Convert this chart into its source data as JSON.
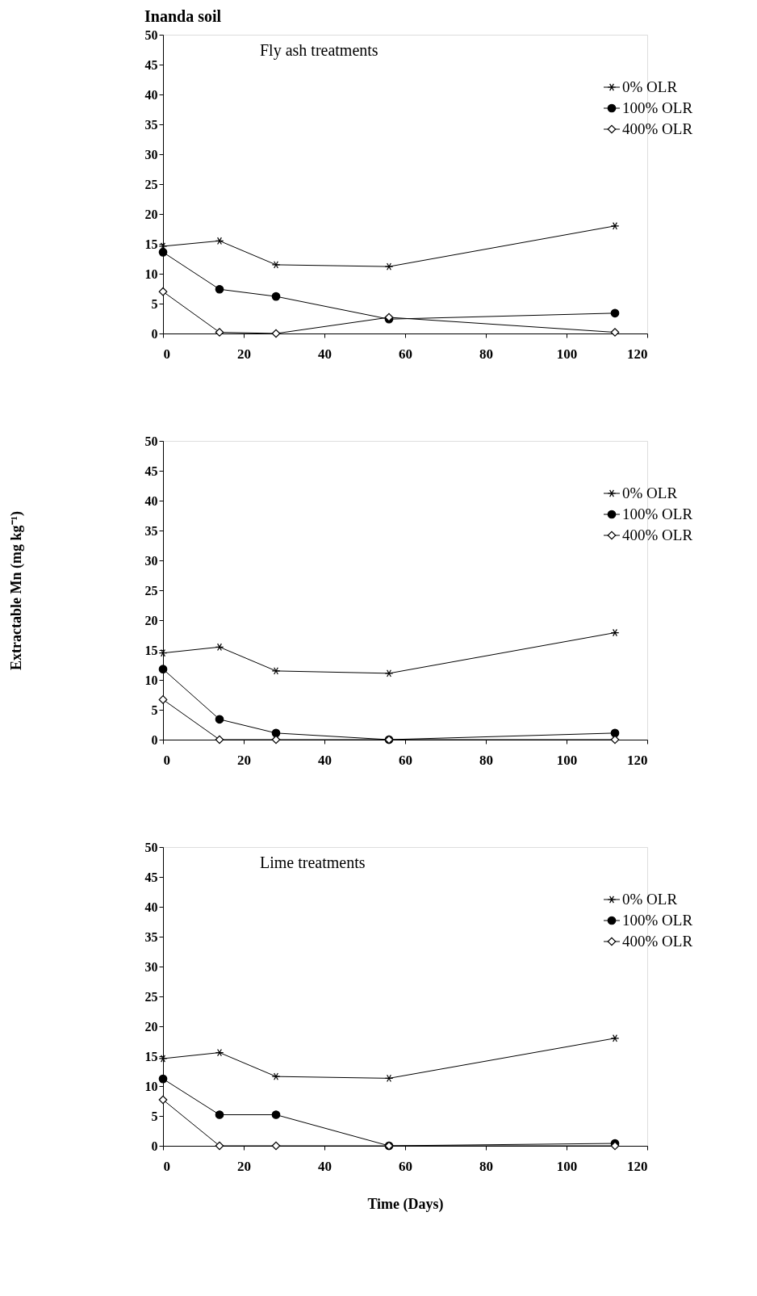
{
  "chart_data": [
    {
      "type": "line",
      "title": "Inanda soil",
      "annotations": [
        "Fly ash treatments"
      ],
      "x": [
        0,
        14,
        28,
        56,
        112
      ],
      "xlim": [
        0,
        120
      ],
      "xticks": [
        0,
        20,
        40,
        60,
        80,
        100,
        120
      ],
      "ylim": [
        0,
        50
      ],
      "yticks": [
        0,
        5,
        10,
        15,
        20,
        25,
        30,
        35,
        40,
        45,
        50
      ],
      "grid": false,
      "legend": "top right",
      "series": [
        {
          "name": "0% OLR",
          "color": "#000000",
          "marker": "cross",
          "values": [
            14.6,
            15.5,
            11.5,
            11.2,
            18.0
          ]
        },
        {
          "name": "100% OLR",
          "color": "#000000",
          "marker": "circle",
          "values": [
            13.6,
            7.4,
            6.2,
            2.4,
            3.4
          ]
        },
        {
          "name": "400% OLR",
          "color": "#000000",
          "marker": "diamond",
          "values": [
            7.0,
            0.2,
            0,
            2.7,
            0.2
          ]
        }
      ]
    },
    {
      "type": "line",
      "ylabel": "Extractable Mn (mg kg⁻¹)",
      "x": [
        0,
        14,
        28,
        56,
        112
      ],
      "xlim": [
        0,
        120
      ],
      "xticks": [
        0,
        20,
        40,
        60,
        80,
        100,
        120
      ],
      "ylim": [
        0,
        50
      ],
      "yticks": [
        0,
        5,
        10,
        15,
        20,
        25,
        30,
        35,
        40,
        45,
        50
      ],
      "grid": false,
      "legend": "top right",
      "series": [
        {
          "name": "0% OLR",
          "color": "#000000",
          "marker": "cross",
          "values": [
            14.5,
            15.5,
            11.5,
            11.1,
            17.9
          ]
        },
        {
          "name": "100% OLR",
          "color": "#000000",
          "marker": "circle",
          "values": [
            11.8,
            3.4,
            1.1,
            0,
            1.1
          ]
        },
        {
          "name": "400% OLR",
          "color": "#000000",
          "marker": "diamond",
          "values": [
            6.7,
            0,
            0,
            0,
            0
          ]
        }
      ]
    },
    {
      "type": "line",
      "xlabel": "Time (Days)",
      "annotations": [
        "Lime treatments"
      ],
      "x": [
        0,
        14,
        28,
        56,
        112
      ],
      "xlim": [
        0,
        120
      ],
      "xticks": [
        0,
        20,
        40,
        60,
        80,
        100,
        120
      ],
      "ylim": [
        0,
        50
      ],
      "yticks": [
        0,
        5,
        10,
        15,
        20,
        25,
        30,
        35,
        40,
        45,
        50
      ],
      "grid": false,
      "legend": "top right",
      "series": [
        {
          "name": "0% OLR",
          "color": "#000000",
          "marker": "cross",
          "values": [
            14.6,
            15.6,
            11.6,
            11.3,
            18.0
          ]
        },
        {
          "name": "100% OLR",
          "color": "#000000",
          "marker": "circle",
          "values": [
            11.2,
            5.2,
            5.2,
            0,
            0.4
          ]
        },
        {
          "name": "400% OLR",
          "color": "#000000",
          "marker": "diamond",
          "values": [
            7.7,
            0,
            0,
            0,
            0
          ]
        }
      ]
    }
  ]
}
